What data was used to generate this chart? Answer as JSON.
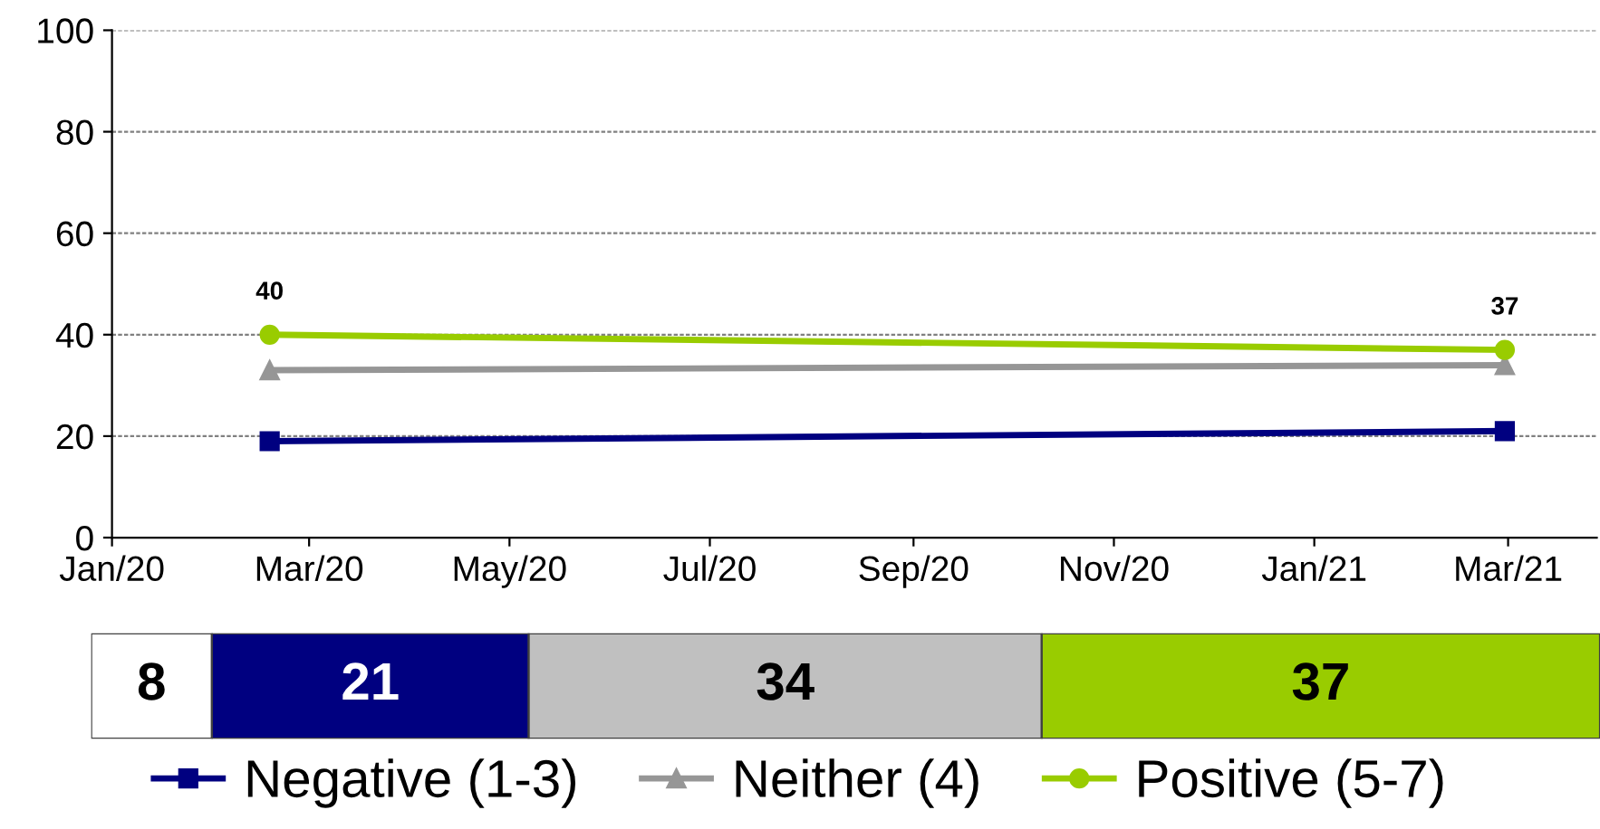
{
  "chart_data": [
    {
      "type": "line",
      "x": [
        "2020-02-18",
        "2021-02-28"
      ],
      "xlim": [
        "2020-01-01",
        "2021-03-28"
      ],
      "xticks": [
        {
          "value": "2020-01-01",
          "label": "Jan/20"
        },
        {
          "value": "2020-03-01",
          "label": "Mar/20"
        },
        {
          "value": "2020-05-01",
          "label": "May/20"
        },
        {
          "value": "2020-07-01",
          "label": "Jul/20"
        },
        {
          "value": "2020-09-01",
          "label": "Sep/20"
        },
        {
          "value": "2020-11-01",
          "label": "Nov/20"
        },
        {
          "value": "2021-01-01",
          "label": "Jan/21"
        },
        {
          "value": "2021-03-01",
          "label": "Mar/21"
        }
      ],
      "ylim": [
        0,
        100
      ],
      "yticks": [
        0,
        20,
        40,
        60,
        80,
        100
      ],
      "grid": "y",
      "legend": "bottom",
      "line_style": "solid",
      "series": [
        {
          "name": "Negative (1-3)",
          "color": "#000080",
          "marker": "square",
          "values": [
            19,
            21
          ]
        },
        {
          "name": "Neither (4)",
          "color": "#969696",
          "marker": "triangle",
          "values": [
            33,
            34
          ]
        },
        {
          "name": "Positive (5-7)",
          "color": "#99cc00",
          "marker": "circle",
          "values": [
            40,
            37
          ],
          "value_labels": [
            "40",
            "37"
          ]
        }
      ]
    },
    {
      "type": "bar",
      "orientation": "horizontal",
      "stacked": true,
      "categories": [
        null
      ],
      "xlim": [
        0,
        100
      ],
      "tick_labels": false,
      "data_labels": true,
      "series": [
        {
          "color": "#ffffff",
          "values": [
            8
          ]
        },
        {
          "color": "#000080",
          "values": [
            21
          ]
        },
        {
          "color": "#c0c0c0",
          "values": [
            34
          ]
        },
        {
          "color": "#99cc00",
          "values": [
            37
          ]
        }
      ]
    }
  ]
}
